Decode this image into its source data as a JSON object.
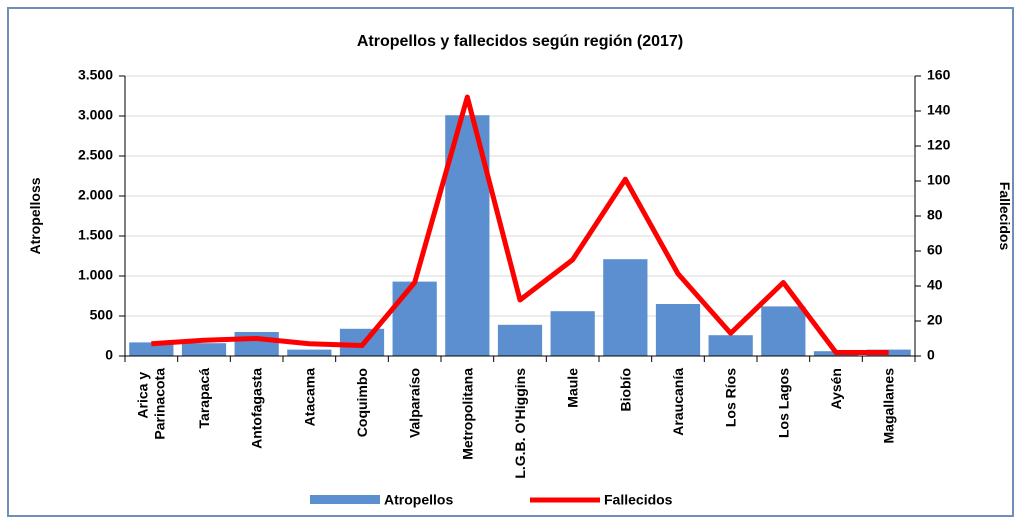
{
  "chart_data": {
    "type": "bar_line",
    "title": "Atropellos y fallecidos según región (2017)",
    "y_label": "Atropelloss",
    "y2_label": "Fallecidos",
    "categories": [
      "Arica y Parinacota",
      "Tarapacá",
      "Antofagasta",
      "Atacama",
      "Coquimbo",
      "Valparaíso",
      "Metropolitana",
      "L.G.B. O'Higgins",
      "Maule",
      "Biobío",
      "Araucanía",
      "Los Ríos",
      "Los Lagos",
      "Aysén",
      "Magallanes"
    ],
    "series": [
      {
        "name": "Atropellos",
        "type": "bar",
        "color": "#5b8fd0",
        "values": [
          170,
          160,
          300,
          80,
          340,
          930,
          3010,
          390,
          560,
          1210,
          650,
          260,
          620,
          60,
          80
        ]
      },
      {
        "name": "Fallecidos",
        "type": "line",
        "axis": "y2",
        "color": "#ff0000",
        "values": [
          7,
          9,
          10,
          7,
          6,
          42,
          148,
          32,
          55,
          101,
          47,
          13,
          42,
          2,
          2
        ]
      }
    ],
    "ylim": [
      0,
      3500
    ],
    "yticks": [
      0,
      500,
      {
        "value": 1000,
        "label": "1.000"
      },
      {
        "value": 1500,
        "label": "1.500"
      },
      {
        "value": 2000,
        "label": "2.000"
      },
      {
        "value": 2500,
        "label": "2.500"
      },
      {
        "value": 3000,
        "label": "3.000"
      },
      {
        "value": 3500,
        "label": "3.500"
      }
    ],
    "y2lim": [
      0,
      160
    ],
    "y2ticks": [
      0,
      20,
      40,
      60,
      80,
      100,
      120,
      140,
      160
    ],
    "grid": true,
    "legend": "bottom"
  }
}
